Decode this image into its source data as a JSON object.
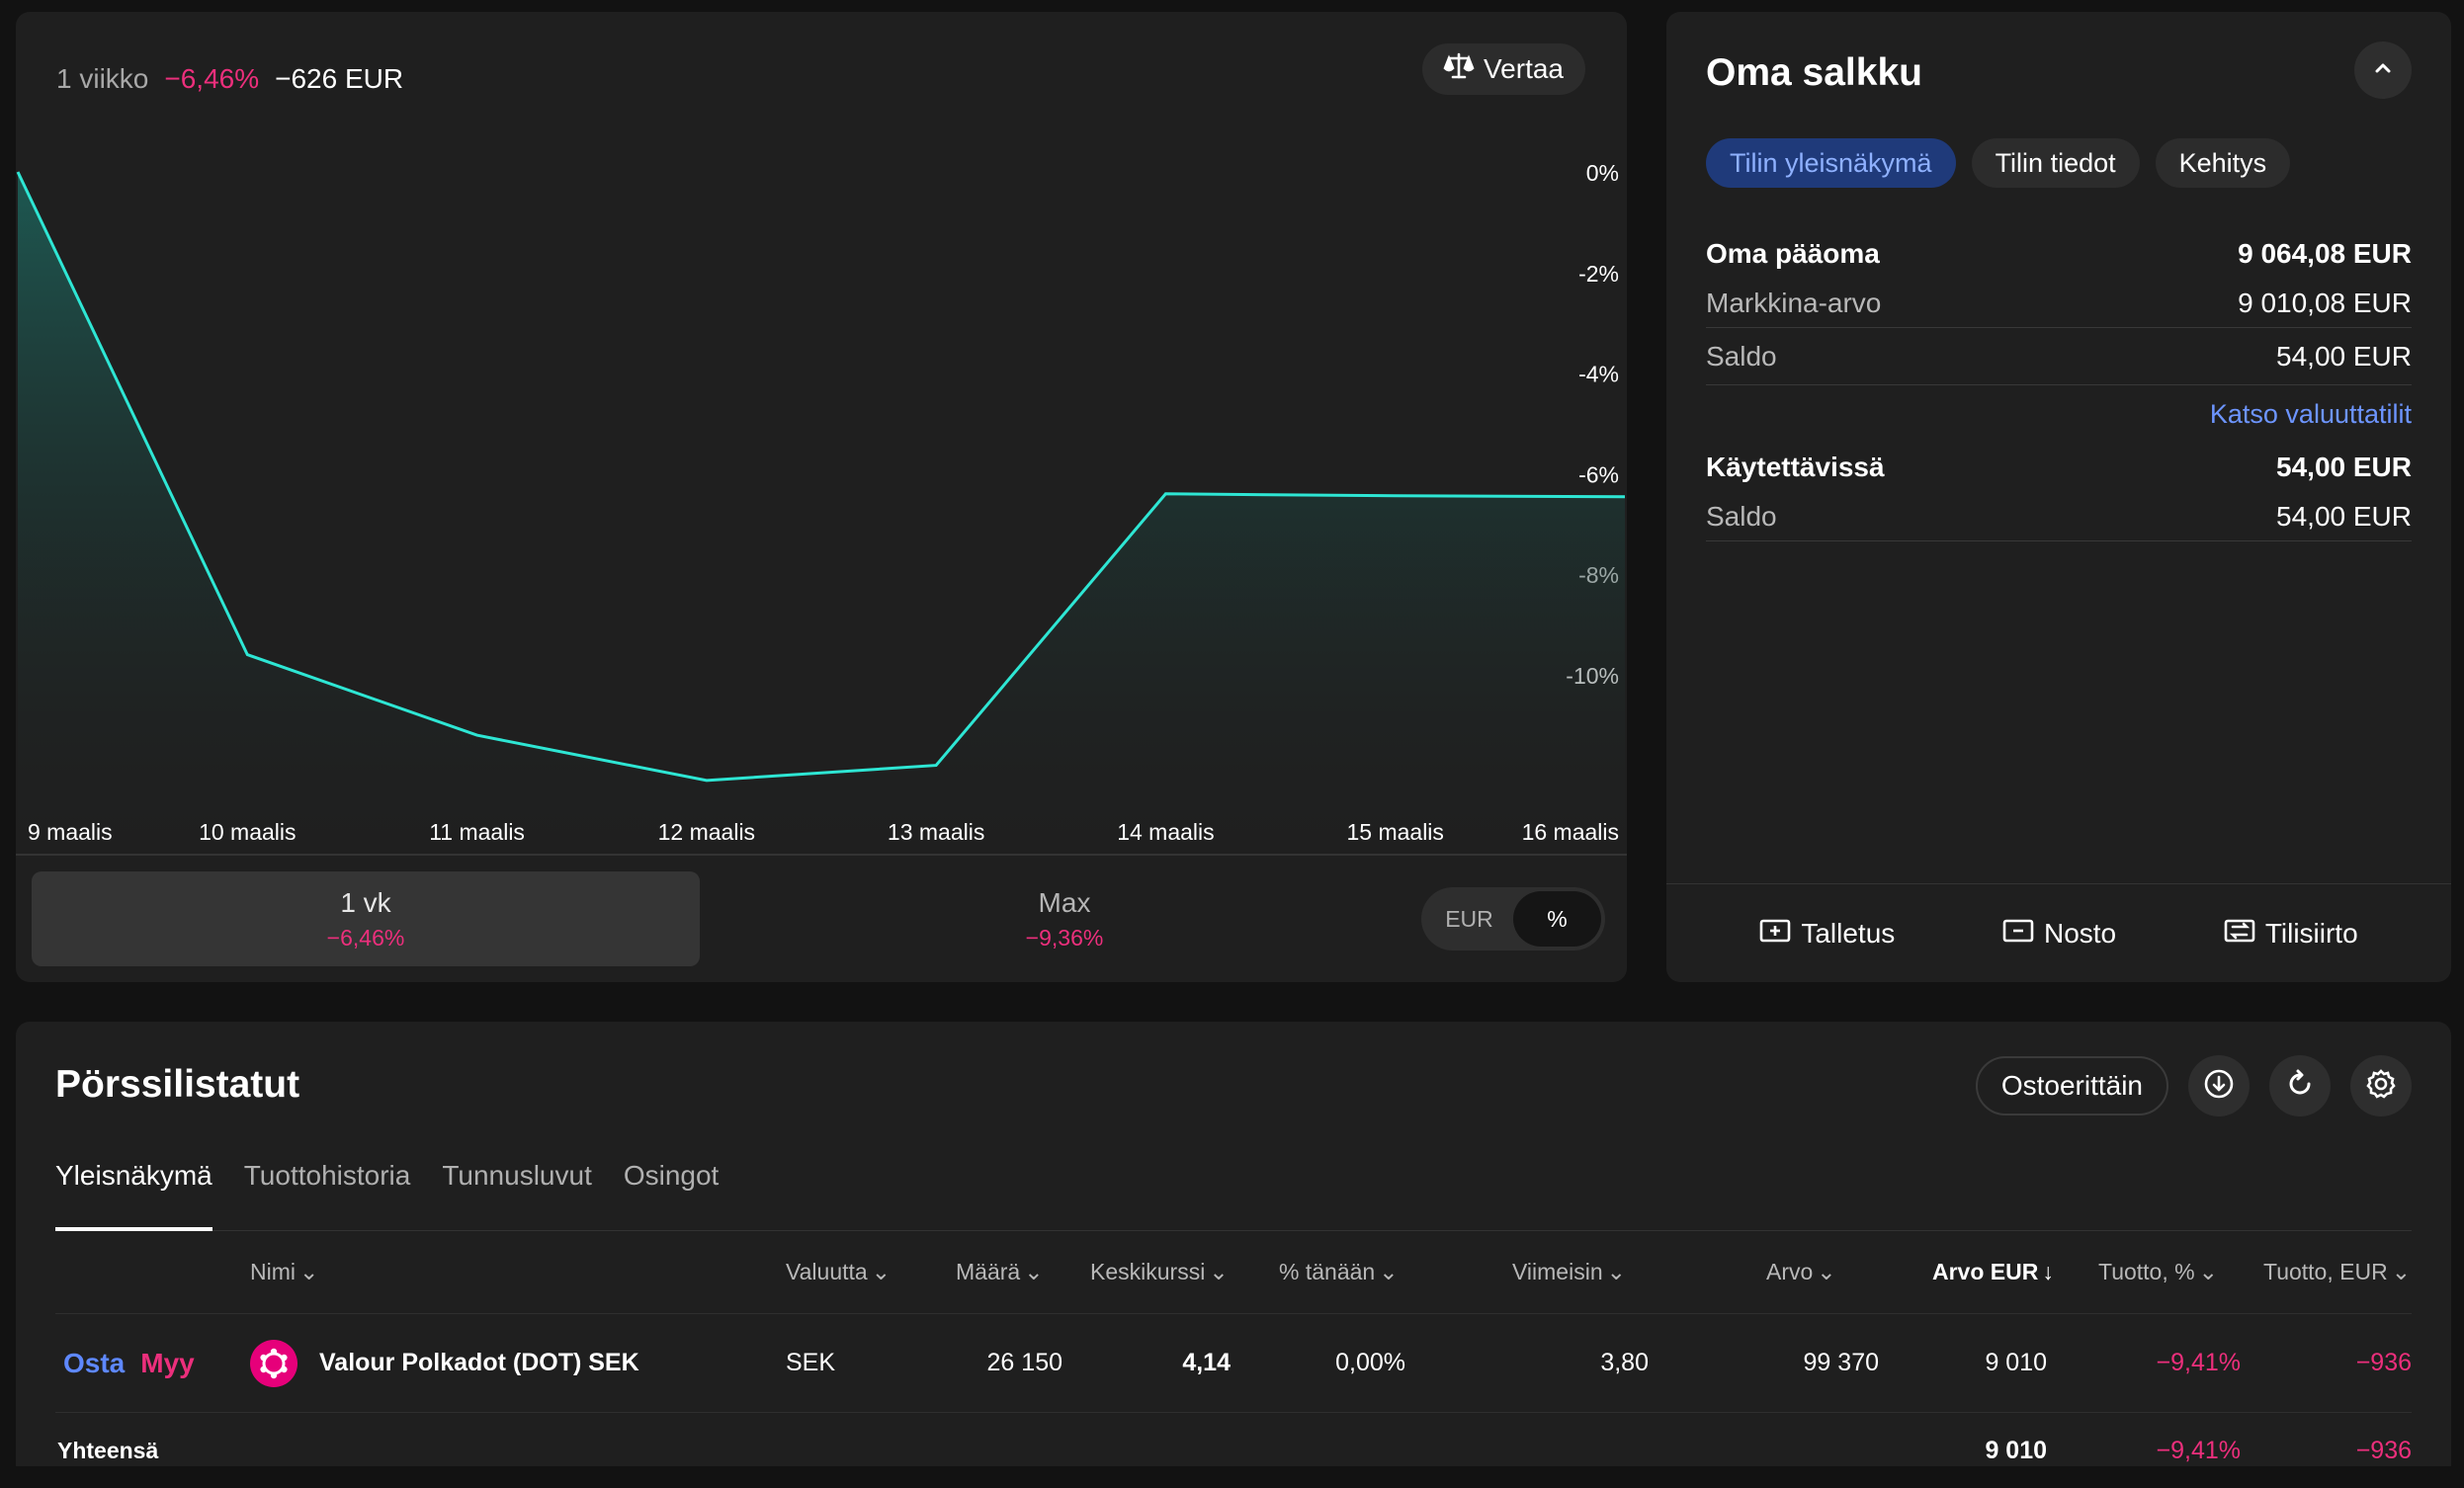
{
  "chart_panel": {
    "period_label": "1 viikko",
    "change_percent": "−6,46%",
    "change_amount": "−626 EUR",
    "compare_label": "Vertaa",
    "ranges": [
      {
        "label": "1 vk",
        "value": "−6,46%"
      },
      {
        "label": "Max",
        "value": "−9,36%"
      }
    ],
    "unit_options": [
      "EUR",
      "%"
    ],
    "active_unit": "%"
  },
  "chart_data": {
    "type": "area",
    "x": [
      "9 maalis",
      "10 maalis",
      "11 maalis",
      "12 maalis",
      "13 maalis",
      "14 maalis",
      "15 maalis",
      "16 maalis"
    ],
    "series": [
      {
        "values": [
          0.0,
          -9.6,
          -11.2,
          -12.1,
          -11.8,
          -6.4,
          -6.44,
          -6.46
        ]
      }
    ],
    "y_ticks": [
      0,
      -2,
      -4,
      -6,
      -8,
      -10
    ],
    "y_tick_labels": [
      "0%",
      "-2%",
      "-4%",
      "-6%",
      "-8%",
      "-10%"
    ],
    "ylim": [
      -12.2,
      0
    ],
    "grid": false,
    "line_color": "#2ee6d4",
    "fill_color": "#1d5c55"
  },
  "portfolio": {
    "title": "Oma salkku",
    "tabs": [
      "Tilin yleisnäkymä",
      "Tilin tiedot",
      "Kehitys"
    ],
    "equity_label": "Oma pääoma",
    "equity_value": "9 064,08 EUR",
    "market_value_label": "Markkina-arvo",
    "market_value": "9 010,08 EUR",
    "balance_label": "Saldo",
    "balance_value": "54,00 EUR",
    "currency_link": "Katso valuuttatilit",
    "available_label": "Käytettävissä",
    "available_value": "54,00 EUR",
    "available_balance_label": "Saldo",
    "available_balance_value": "54,00 EUR",
    "actions": [
      "Talletus",
      "Nosto",
      "Tilisiirto"
    ]
  },
  "holdings": {
    "title": "Pörssilistatut",
    "by_purchase_label": "Ostoerittäin",
    "tabs": [
      "Yleisnäkymä",
      "Tuottohistoria",
      "Tunnusluvut",
      "Osingot"
    ],
    "columns": [
      "Nimi",
      "Valuutta",
      "Määrä",
      "Keskikurssi",
      "% tänään",
      "Viimeisin",
      "Arvo",
      "Arvo EUR",
      "Tuotto, %",
      "Tuotto, EUR"
    ],
    "row": {
      "buy": "Osta",
      "sell": "Myy",
      "name": "Valour Polkadot (DOT) SEK",
      "currency": "SEK",
      "quantity": "26 150",
      "avg_price": "4,14",
      "today": "0,00%",
      "latest": "3,80",
      "value": "99 370",
      "value_eur": "9 010",
      "return_pct": "−9,41%",
      "return_eur": "−936"
    },
    "total": {
      "label": "Yhteensä",
      "value_eur": "9 010",
      "return_pct": "−9,41%",
      "return_eur": "−936"
    }
  }
}
